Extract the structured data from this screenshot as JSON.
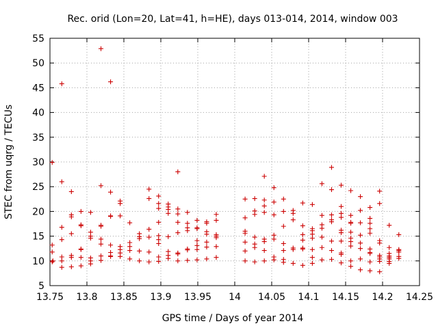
{
  "chart_data": {
    "type": "scatter",
    "title": "Rec. orid (Lon=20, Lat=41, h=HE), days 013-014, 2014, window 003",
    "xlabel": "GPS time / Days of year 2014",
    "ylabel": "STEC from uqrg / TECUs",
    "xlim": [
      13.75,
      14.25
    ],
    "ylim": [
      5,
      55
    ],
    "x_ticks": [
      13.75,
      13.8,
      13.85,
      13.9,
      13.95,
      14.0,
      14.05,
      14.1,
      14.15,
      14.2,
      14.25
    ],
    "x_tick_labels": [
      "13.75",
      "13.8",
      "13.85",
      "13.9",
      "13.95",
      "14",
      "14.05",
      "14.1",
      "14.15",
      "14.2",
      "14.25"
    ],
    "y_ticks": [
      5,
      10,
      15,
      20,
      25,
      30,
      35,
      40,
      45,
      50,
      55
    ],
    "y_tick_labels": [
      "5",
      "10",
      "15",
      "20",
      "25",
      "30",
      "35",
      "40",
      "45",
      "50",
      "55"
    ],
    "grid": true,
    "marker": "+",
    "marker_color": "#cc0000",
    "series": [
      {
        "points": [
          [
            13.753,
            29.9
          ],
          [
            13.753,
            13.2
          ],
          [
            13.753,
            11.8
          ],
          [
            13.754,
            10.0
          ],
          [
            13.753,
            9.8
          ],
          [
            13.766,
            45.8
          ],
          [
            13.766,
            26.0
          ],
          [
            13.766,
            16.8
          ],
          [
            13.766,
            14.3
          ],
          [
            13.766,
            10.8
          ],
          [
            13.766,
            10.0
          ],
          [
            13.766,
            8.7
          ],
          [
            13.779,
            24.0
          ],
          [
            13.779,
            19.3
          ],
          [
            13.779,
            18.9
          ],
          [
            13.779,
            15.5
          ],
          [
            13.779,
            11.1
          ],
          [
            13.779,
            10.7
          ],
          [
            13.779,
            8.8
          ],
          [
            13.792,
            20.0
          ],
          [
            13.792,
            17.3
          ],
          [
            13.792,
            17.1
          ],
          [
            13.792,
            12.4
          ],
          [
            13.792,
            12.3
          ],
          [
            13.792,
            10.7
          ],
          [
            13.792,
            9.0
          ],
          [
            13.805,
            19.8
          ],
          [
            13.805,
            15.8
          ],
          [
            13.805,
            15.0
          ],
          [
            13.805,
            14.6
          ],
          [
            13.805,
            10.6
          ],
          [
            13.805,
            10.0
          ],
          [
            13.805,
            9.4
          ],
          [
            13.819,
            52.9
          ],
          [
            13.819,
            25.2
          ],
          [
            13.819,
            17.2
          ],
          [
            13.819,
            17.0
          ],
          [
            13.819,
            14.4
          ],
          [
            13.819,
            13.4
          ],
          [
            13.819,
            11.0
          ],
          [
            13.819,
            10.1
          ],
          [
            13.832,
            46.2
          ],
          [
            13.832,
            23.9
          ],
          [
            13.832,
            19.1
          ],
          [
            13.832,
            19.0
          ],
          [
            13.832,
            13.2
          ],
          [
            13.832,
            11.7
          ],
          [
            13.832,
            11.0
          ],
          [
            13.832,
            10.9
          ],
          [
            13.845,
            22.1
          ],
          [
            13.845,
            21.6
          ],
          [
            13.845,
            19.1
          ],
          [
            13.845,
            12.9
          ],
          [
            13.845,
            12.3
          ],
          [
            13.845,
            11.6
          ],
          [
            13.845,
            10.9
          ],
          [
            13.858,
            17.7
          ],
          [
            13.858,
            13.7
          ],
          [
            13.858,
            12.9
          ],
          [
            13.858,
            12.1
          ],
          [
            13.858,
            10.4
          ],
          [
            13.871,
            15.5
          ],
          [
            13.871,
            14.9
          ],
          [
            13.871,
            14.5
          ],
          [
            13.871,
            12.0
          ],
          [
            13.871,
            10.0
          ],
          [
            13.884,
            24.5
          ],
          [
            13.884,
            22.6
          ],
          [
            13.884,
            16.4
          ],
          [
            13.884,
            14.8
          ],
          [
            13.884,
            11.8
          ],
          [
            13.884,
            9.8
          ],
          [
            13.897,
            23.1
          ],
          [
            13.897,
            21.6
          ],
          [
            13.897,
            20.6
          ],
          [
            13.897,
            17.8
          ],
          [
            13.897,
            15.1
          ],
          [
            13.897,
            14.3
          ],
          [
            13.897,
            13.5
          ],
          [
            13.897,
            10.8
          ],
          [
            13.897,
            9.9
          ],
          [
            13.91,
            21.5
          ],
          [
            13.91,
            20.9
          ],
          [
            13.91,
            20.4
          ],
          [
            13.91,
            19.6
          ],
          [
            13.91,
            14.9
          ],
          [
            13.91,
            11.9
          ],
          [
            13.91,
            11.1
          ],
          [
            13.91,
            10.5
          ],
          [
            13.923,
            28.0
          ],
          [
            13.923,
            20.5
          ],
          [
            13.923,
            19.5
          ],
          [
            13.923,
            17.8
          ],
          [
            13.923,
            15.7
          ],
          [
            13.923,
            11.6
          ],
          [
            13.923,
            11.4
          ],
          [
            13.923,
            10.0
          ],
          [
            13.936,
            19.8
          ],
          [
            13.936,
            17.6
          ],
          [
            13.936,
            16.7
          ],
          [
            13.936,
            16.1
          ],
          [
            13.936,
            12.4
          ],
          [
            13.936,
            12.2
          ],
          [
            13.936,
            10.1
          ],
          [
            13.949,
            18.2
          ],
          [
            13.949,
            16.7
          ],
          [
            13.949,
            16.5
          ],
          [
            13.949,
            14.1
          ],
          [
            13.949,
            13.1
          ],
          [
            13.949,
            12.3
          ],
          [
            13.949,
            10.2
          ],
          [
            13.962,
            17.9
          ],
          [
            13.962,
            17.6
          ],
          [
            13.962,
            15.9
          ],
          [
            13.962,
            15.4
          ],
          [
            13.962,
            13.8
          ],
          [
            13.962,
            12.8
          ],
          [
            13.962,
            10.4
          ],
          [
            13.975,
            19.4
          ],
          [
            13.975,
            18.2
          ],
          [
            13.975,
            15.3
          ],
          [
            13.975,
            15.0
          ],
          [
            13.975,
            14.7
          ],
          [
            13.975,
            12.9
          ],
          [
            13.975,
            10.7
          ],
          [
            14.014,
            22.5
          ],
          [
            14.014,
            18.7
          ],
          [
            14.014,
            16.0
          ],
          [
            14.014,
            15.6
          ],
          [
            14.014,
            13.8
          ],
          [
            14.014,
            12.0
          ],
          [
            14.014,
            10.0
          ],
          [
            14.027,
            22.6
          ],
          [
            14.027,
            20.1
          ],
          [
            14.027,
            19.4
          ],
          [
            14.027,
            14.8
          ],
          [
            14.027,
            13.4
          ],
          [
            14.027,
            12.7
          ],
          [
            14.027,
            9.8
          ],
          [
            14.04,
            27.1
          ],
          [
            14.04,
            22.3
          ],
          [
            14.04,
            21.1
          ],
          [
            14.04,
            19.8
          ],
          [
            14.04,
            14.4
          ],
          [
            14.04,
            13.9
          ],
          [
            14.04,
            12.1
          ],
          [
            14.04,
            10.0
          ],
          [
            14.053,
            24.8
          ],
          [
            14.053,
            21.9
          ],
          [
            14.053,
            19.3
          ],
          [
            14.053,
            15.2
          ],
          [
            14.053,
            14.4
          ],
          [
            14.053,
            10.8
          ],
          [
            14.053,
            10.2
          ],
          [
            14.066,
            22.5
          ],
          [
            14.066,
            20.0
          ],
          [
            14.066,
            17.0
          ],
          [
            14.066,
            13.5
          ],
          [
            14.066,
            12.1
          ],
          [
            14.066,
            10.3
          ],
          [
            14.066,
            9.7
          ],
          [
            14.079,
            20.2
          ],
          [
            14.079,
            19.6
          ],
          [
            14.079,
            18.3
          ],
          [
            14.079,
            12.6
          ],
          [
            14.079,
            12.3
          ],
          [
            14.079,
            9.5
          ],
          [
            14.092,
            21.7
          ],
          [
            14.092,
            17.1
          ],
          [
            14.092,
            15.3
          ],
          [
            14.092,
            14.2
          ],
          [
            14.092,
            12.6
          ],
          [
            14.092,
            12.4
          ],
          [
            14.092,
            9.1
          ],
          [
            14.105,
            21.4
          ],
          [
            14.105,
            16.5
          ],
          [
            14.105,
            16.1
          ],
          [
            14.105,
            15.4
          ],
          [
            14.105,
            14.6
          ],
          [
            14.105,
            12.3
          ],
          [
            14.105,
            10.7
          ],
          [
            14.105,
            9.5
          ],
          [
            14.118,
            25.6
          ],
          [
            14.118,
            19.2
          ],
          [
            14.118,
            17.3
          ],
          [
            14.118,
            16.6
          ],
          [
            14.118,
            14.8
          ],
          [
            14.118,
            12.7
          ],
          [
            14.118,
            10.2
          ],
          [
            14.131,
            28.9
          ],
          [
            14.131,
            24.4
          ],
          [
            14.131,
            19.3
          ],
          [
            14.131,
            18.3
          ],
          [
            14.131,
            17.9
          ],
          [
            14.131,
            14.0
          ],
          [
            14.131,
            12.1
          ],
          [
            14.131,
            10.3
          ],
          [
            14.144,
            25.3
          ],
          [
            14.144,
            21.0
          ],
          [
            14.144,
            19.6
          ],
          [
            14.144,
            18.8
          ],
          [
            14.144,
            16.2
          ],
          [
            14.144,
            15.7
          ],
          [
            14.144,
            14.0
          ],
          [
            14.144,
            11.6
          ],
          [
            14.144,
            11.3
          ],
          [
            14.144,
            9.6
          ],
          [
            14.157,
            24.2
          ],
          [
            14.157,
            19.2
          ],
          [
            14.157,
            17.8
          ],
          [
            14.157,
            17.6
          ],
          [
            14.157,
            15.8
          ],
          [
            14.157,
            14.6
          ],
          [
            14.157,
            13.9
          ],
          [
            14.157,
            13.0
          ],
          [
            14.157,
            10.0
          ],
          [
            14.157,
            8.9
          ],
          [
            14.17,
            23.0
          ],
          [
            14.17,
            20.2
          ],
          [
            14.17,
            17.7
          ],
          [
            14.17,
            15.2
          ],
          [
            14.17,
            13.6
          ],
          [
            14.17,
            12.5
          ],
          [
            14.17,
            10.4
          ],
          [
            14.17,
            8.2
          ],
          [
            14.183,
            20.8
          ],
          [
            14.183,
            18.6
          ],
          [
            14.183,
            17.6
          ],
          [
            14.183,
            16.5
          ],
          [
            14.183,
            15.6
          ],
          [
            14.183,
            12.4
          ],
          [
            14.183,
            11.7
          ],
          [
            14.183,
            11.5
          ],
          [
            14.183,
            9.8
          ],
          [
            14.183,
            8.0
          ],
          [
            14.196,
            24.1
          ],
          [
            14.196,
            21.6
          ],
          [
            14.196,
            14.1
          ],
          [
            14.196,
            13.6
          ],
          [
            14.196,
            11.1
          ],
          [
            14.196,
            10.8
          ],
          [
            14.196,
            10.4
          ],
          [
            14.196,
            9.9
          ],
          [
            14.196,
            7.8
          ],
          [
            14.209,
            17.2
          ],
          [
            14.209,
            12.7
          ],
          [
            14.209,
            11.5
          ],
          [
            14.209,
            11.0
          ],
          [
            14.209,
            10.7
          ],
          [
            14.209,
            10.4
          ],
          [
            14.209,
            9.9
          ],
          [
            14.209,
            9.5
          ],
          [
            14.222,
            15.3
          ],
          [
            14.222,
            12.3
          ],
          [
            14.222,
            12.1
          ],
          [
            14.222,
            11.8
          ],
          [
            14.222,
            10.9
          ],
          [
            14.222,
            10.5
          ]
        ]
      }
    ]
  }
}
